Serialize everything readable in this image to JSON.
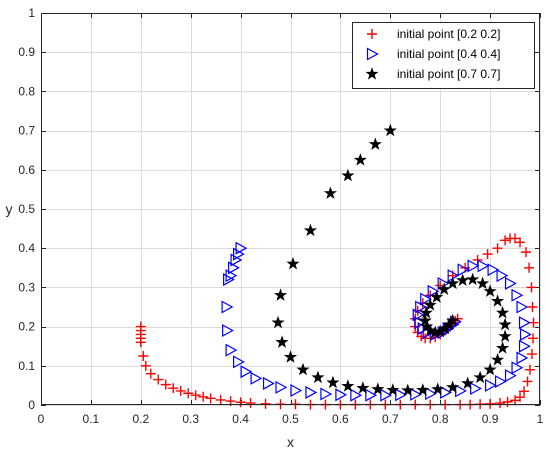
{
  "chart_data": {
    "type": "scatter",
    "xlabel": "x",
    "ylabel": "y",
    "xlim": [
      0,
      1
    ],
    "ylim": [
      0,
      1
    ],
    "xticks": [
      "0",
      "0.1",
      "0.2",
      "0.3",
      "0.4",
      "0.5",
      "0.6",
      "0.7",
      "0.8",
      "0.9",
      "1"
    ],
    "yticks": [
      "0",
      "0.1",
      "0.2",
      "0.3",
      "0.4",
      "0.5",
      "0.6",
      "0.7",
      "0.8",
      "0.9",
      "1"
    ],
    "grid": true,
    "legend_position": "top-right",
    "series": [
      {
        "name": "initial point [0.2 0.2]",
        "marker": "plus",
        "color": "#ff0000",
        "points": [
          [
            0.2,
            0.2
          ],
          [
            0.2,
            0.19
          ],
          [
            0.2,
            0.18
          ],
          [
            0.2,
            0.17
          ],
          [
            0.2,
            0.16
          ],
          [
            0.205,
            0.125
          ],
          [
            0.21,
            0.1
          ],
          [
            0.22,
            0.08
          ],
          [
            0.235,
            0.065
          ],
          [
            0.25,
            0.052
          ],
          [
            0.265,
            0.043
          ],
          [
            0.28,
            0.036
          ],
          [
            0.295,
            0.03
          ],
          [
            0.31,
            0.025
          ],
          [
            0.325,
            0.021
          ],
          [
            0.34,
            0.017
          ],
          [
            0.36,
            0.013
          ],
          [
            0.38,
            0.01
          ],
          [
            0.4,
            0.007
          ],
          [
            0.42,
            0.005
          ],
          [
            0.45,
            0.003
          ],
          [
            0.48,
            0.002
          ],
          [
            0.51,
            0.002
          ],
          [
            0.54,
            0.001
          ],
          [
            0.57,
            0.001
          ],
          [
            0.6,
            0.001
          ],
          [
            0.63,
            0.001
          ],
          [
            0.66,
            0.001
          ],
          [
            0.69,
            0.001
          ],
          [
            0.72,
            0.001
          ],
          [
            0.75,
            0.001
          ],
          [
            0.78,
            0.001
          ],
          [
            0.81,
            0.001
          ],
          [
            0.84,
            0.001
          ],
          [
            0.86,
            0.001
          ],
          [
            0.88,
            0.002
          ],
          [
            0.9,
            0.003
          ],
          [
            0.92,
            0.005
          ],
          [
            0.935,
            0.008
          ],
          [
            0.95,
            0.012
          ],
          [
            0.96,
            0.02
          ],
          [
            0.968,
            0.035
          ],
          [
            0.975,
            0.06
          ],
          [
            0.98,
            0.09
          ],
          [
            0.984,
            0.13
          ],
          [
            0.986,
            0.17
          ],
          [
            0.987,
            0.21
          ],
          [
            0.985,
            0.25
          ],
          [
            0.983,
            0.3
          ],
          [
            0.978,
            0.35
          ],
          [
            0.972,
            0.39
          ],
          [
            0.96,
            0.415
          ],
          [
            0.95,
            0.425
          ],
          [
            0.94,
            0.425
          ],
          [
            0.93,
            0.42
          ],
          [
            0.915,
            0.4
          ],
          [
            0.895,
            0.385
          ],
          [
            0.875,
            0.37
          ],
          [
            0.85,
            0.35
          ],
          [
            0.825,
            0.33
          ],
          [
            0.8,
            0.305
          ],
          [
            0.78,
            0.28
          ],
          [
            0.765,
            0.26
          ],
          [
            0.755,
            0.24
          ],
          [
            0.75,
            0.22
          ],
          [
            0.75,
            0.2
          ],
          [
            0.755,
            0.185
          ],
          [
            0.762,
            0.175
          ],
          [
            0.77,
            0.17
          ],
          [
            0.78,
            0.17
          ],
          [
            0.79,
            0.173
          ],
          [
            0.8,
            0.18
          ],
          [
            0.81,
            0.19
          ],
          [
            0.82,
            0.2
          ],
          [
            0.825,
            0.21
          ],
          [
            0.83,
            0.215
          ],
          [
            0.835,
            0.22
          ]
        ]
      },
      {
        "name": "initial point [0.4 0.4]",
        "marker": "triangle-right",
        "color": "#0000ff",
        "points": [
          [
            0.4,
            0.4
          ],
          [
            0.395,
            0.385
          ],
          [
            0.39,
            0.37
          ],
          [
            0.385,
            0.35
          ],
          [
            0.38,
            0.33
          ],
          [
            0.375,
            0.32
          ],
          [
            0.372,
            0.25
          ],
          [
            0.373,
            0.19
          ],
          [
            0.38,
            0.14
          ],
          [
            0.395,
            0.11
          ],
          [
            0.41,
            0.085
          ],
          [
            0.43,
            0.068
          ],
          [
            0.455,
            0.055
          ],
          [
            0.48,
            0.045
          ],
          [
            0.51,
            0.037
          ],
          [
            0.54,
            0.032
          ],
          [
            0.57,
            0.028
          ],
          [
            0.6,
            0.026
          ],
          [
            0.63,
            0.025
          ],
          [
            0.66,
            0.025
          ],
          [
            0.69,
            0.025
          ],
          [
            0.72,
            0.026
          ],
          [
            0.75,
            0.027
          ],
          [
            0.78,
            0.029
          ],
          [
            0.81,
            0.032
          ],
          [
            0.84,
            0.036
          ],
          [
            0.87,
            0.042
          ],
          [
            0.9,
            0.05
          ],
          [
            0.92,
            0.06
          ],
          [
            0.94,
            0.075
          ],
          [
            0.953,
            0.095
          ],
          [
            0.963,
            0.12
          ],
          [
            0.968,
            0.15
          ],
          [
            0.97,
            0.18
          ],
          [
            0.968,
            0.21
          ],
          [
            0.963,
            0.25
          ],
          [
            0.953,
            0.28
          ],
          [
            0.94,
            0.31
          ],
          [
            0.923,
            0.33
          ],
          [
            0.905,
            0.345
          ],
          [
            0.885,
            0.355
          ],
          [
            0.865,
            0.355
          ],
          [
            0.845,
            0.345
          ],
          [
            0.825,
            0.33
          ],
          [
            0.805,
            0.31
          ],
          [
            0.785,
            0.29
          ],
          [
            0.77,
            0.27
          ],
          [
            0.76,
            0.25
          ],
          [
            0.755,
            0.23
          ],
          [
            0.758,
            0.21
          ],
          [
            0.765,
            0.195
          ],
          [
            0.775,
            0.185
          ],
          [
            0.79,
            0.18
          ],
          [
            0.805,
            0.185
          ],
          [
            0.815,
            0.195
          ],
          [
            0.825,
            0.205
          ],
          [
            0.83,
            0.212
          ]
        ]
      },
      {
        "name": "initial point [0.7 0.7]",
        "marker": "star",
        "color": "#000000",
        "points": [
          [
            0.7,
            0.7
          ],
          [
            0.67,
            0.665
          ],
          [
            0.64,
            0.625
          ],
          [
            0.615,
            0.585
          ],
          [
            0.58,
            0.54
          ],
          [
            0.54,
            0.445
          ],
          [
            0.505,
            0.36
          ],
          [
            0.48,
            0.28
          ],
          [
            0.475,
            0.21
          ],
          [
            0.483,
            0.16
          ],
          [
            0.5,
            0.122
          ],
          [
            0.525,
            0.09
          ],
          [
            0.555,
            0.07
          ],
          [
            0.585,
            0.057
          ],
          [
            0.615,
            0.048
          ],
          [
            0.645,
            0.043
          ],
          [
            0.675,
            0.04
          ],
          [
            0.705,
            0.038
          ],
          [
            0.735,
            0.037
          ],
          [
            0.765,
            0.038
          ],
          [
            0.795,
            0.04
          ],
          [
            0.825,
            0.045
          ],
          [
            0.855,
            0.055
          ],
          [
            0.88,
            0.07
          ],
          [
            0.9,
            0.09
          ],
          [
            0.915,
            0.115
          ],
          [
            0.925,
            0.145
          ],
          [
            0.93,
            0.175
          ],
          [
            0.93,
            0.205
          ],
          [
            0.925,
            0.235
          ],
          [
            0.915,
            0.265
          ],
          [
            0.9,
            0.29
          ],
          [
            0.885,
            0.31
          ],
          [
            0.865,
            0.32
          ],
          [
            0.845,
            0.318
          ],
          [
            0.825,
            0.31
          ],
          [
            0.808,
            0.295
          ],
          [
            0.793,
            0.275
          ],
          [
            0.78,
            0.255
          ],
          [
            0.772,
            0.235
          ],
          [
            0.77,
            0.215
          ],
          [
            0.773,
            0.2
          ],
          [
            0.78,
            0.19
          ],
          [
            0.79,
            0.185
          ],
          [
            0.8,
            0.187
          ],
          [
            0.81,
            0.195
          ],
          [
            0.818,
            0.205
          ],
          [
            0.825,
            0.215
          ]
        ]
      }
    ]
  }
}
